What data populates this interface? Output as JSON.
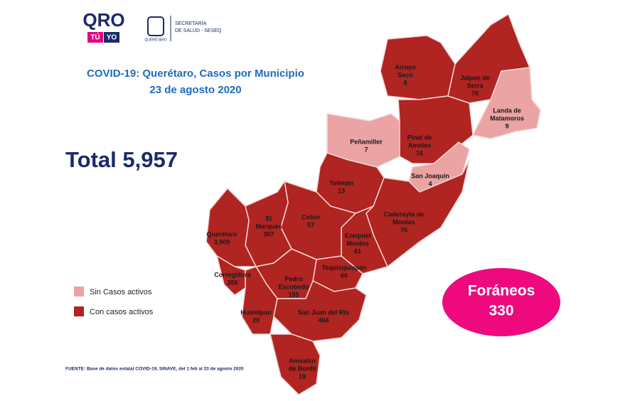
{
  "header": {
    "logo": "QRO",
    "logo_sub": [
      "TÚ",
      "YO"
    ],
    "emblem_caption": "QUERÉTARO",
    "department": [
      "SECRETARÍA",
      "DE SALUD - SESEQ"
    ]
  },
  "title": "COVID-19: Querétaro, Casos por Municipio",
  "date": "23 de agosto 2020",
  "total": {
    "label": "Total",
    "value": "5,957"
  },
  "legend": [
    {
      "label": "Sin Casos activos",
      "color": "#eba3a3"
    },
    {
      "label": "Con casos activos",
      "color": "#b02421"
    }
  ],
  "municipalities": [
    {
      "name": [
        "Arroyo",
        "Seco"
      ],
      "cases": "8",
      "color": "#b02421"
    },
    {
      "name": [
        "Jalpan de",
        "Serra"
      ],
      "cases": "78",
      "color": "#b02421"
    },
    {
      "name": [
        "Landa de",
        "Matamoros"
      ],
      "cases": "9",
      "color": "#eba3a3"
    },
    {
      "name": [
        "Peñamiller"
      ],
      "cases": "7",
      "color": "#eba3a3"
    },
    {
      "name": [
        "Pinal de",
        "Amoles"
      ],
      "cases": "16",
      "color": "#b02421"
    },
    {
      "name": [
        "San Joaquín"
      ],
      "cases": "4",
      "color": "#eba3a3"
    },
    {
      "name": [
        "Tolimán"
      ],
      "cases": "13",
      "color": "#b02421"
    },
    {
      "name": [
        "Cadereyta de",
        "Montes"
      ],
      "cases": "76",
      "color": "#b02421"
    },
    {
      "name": [
        "Ezequiel",
        "Montes"
      ],
      "cases": "61",
      "color": "#b02421"
    },
    {
      "name": [
        "Colón"
      ],
      "cases": "57",
      "color": "#b02421"
    },
    {
      "name": [
        "El",
        "Marqués"
      ],
      "cases": "307",
      "color": "#b02421"
    },
    {
      "name": [
        "Querétaro"
      ],
      "cases": "3,909",
      "color": "#b02421"
    },
    {
      "name": [
        "Corregidora"
      ],
      "cases": "356",
      "color": "#b02421"
    },
    {
      "name": [
        "Tequisquiapan"
      ],
      "cases": "66",
      "color": "#b02421"
    },
    {
      "name": [
        "Pedro",
        "Escobedo"
      ],
      "cases": "155",
      "color": "#b02421"
    },
    {
      "name": [
        "Huimilpan"
      ],
      "cases": "20",
      "color": "#b02421"
    },
    {
      "name": [
        "San Juan del Río"
      ],
      "cases": "466",
      "color": "#b02421"
    },
    {
      "name": [
        "Amealco",
        "de Bonfil"
      ],
      "cases": "19",
      "color": "#b02421"
    }
  ],
  "foreign": {
    "label": "Foráneos",
    "value": "330"
  },
  "source": "FUENTE: Base de datos estatal COVID-19, SINAVE, del 1 feb al 23 de agosto 2020"
}
